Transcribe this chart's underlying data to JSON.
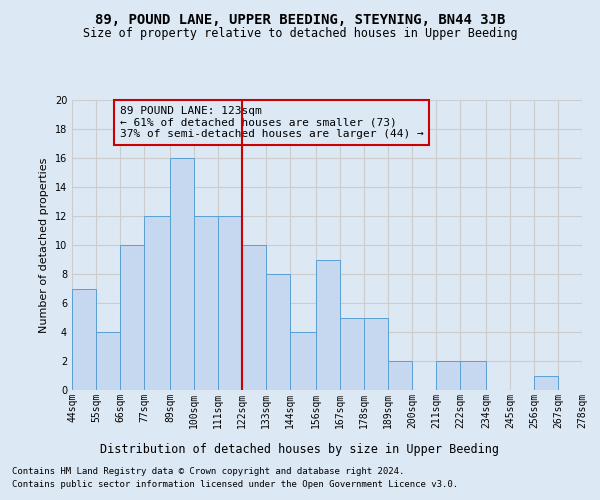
{
  "title": "89, POUND LANE, UPPER BEEDING, STEYNING, BN44 3JB",
  "subtitle": "Size of property relative to detached houses in Upper Beeding",
  "xlabel": "Distribution of detached houses by size in Upper Beeding",
  "ylabel": "Number of detached properties",
  "footer1": "Contains HM Land Registry data © Crown copyright and database right 2024.",
  "footer2": "Contains public sector information licensed under the Open Government Licence v3.0.",
  "annotation_line1": "89 POUND LANE: 123sqm",
  "annotation_line2": "← 61% of detached houses are smaller (73)",
  "annotation_line3": "37% of semi-detached houses are larger (44) →",
  "bar_left_edges": [
    44,
    55,
    66,
    77,
    89,
    100,
    111,
    122,
    133,
    144,
    156,
    167,
    178,
    189,
    200,
    211,
    222,
    234,
    245,
    256,
    267
  ],
  "bar_widths": [
    11,
    11,
    11,
    12,
    11,
    11,
    11,
    11,
    11,
    12,
    11,
    11,
    11,
    11,
    11,
    11,
    12,
    11,
    11,
    11,
    11
  ],
  "bar_heights": [
    7,
    4,
    10,
    12,
    16,
    12,
    12,
    10,
    8,
    4,
    9,
    5,
    5,
    2,
    0,
    2,
    2,
    0,
    0,
    1,
    0
  ],
  "bar_color": "#c5d8f0",
  "bar_edge_color": "#5a9fd4",
  "vline_x": 122,
  "vline_color": "#cc0000",
  "annotation_box_color": "#cc0000",
  "ylim": [
    0,
    20
  ],
  "yticks": [
    0,
    2,
    4,
    6,
    8,
    10,
    12,
    14,
    16,
    18,
    20
  ],
  "grid_color": "#cccccc",
  "bg_color": "#dde8f5",
  "title_fontsize": 10,
  "subtitle_fontsize": 8.5,
  "ylabel_fontsize": 8,
  "xlabel_fontsize": 8.5,
  "tick_fontsize": 7,
  "annotation_fontsize": 8,
  "footer_fontsize": 6.5
}
